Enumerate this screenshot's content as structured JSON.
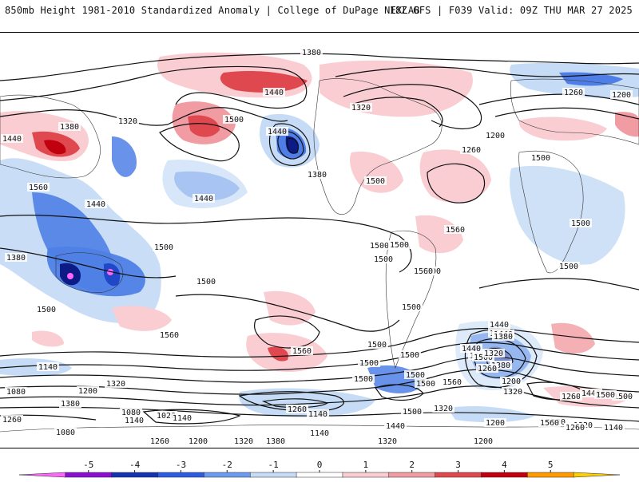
{
  "header": {
    "left_title": "850mb Height 1981-2010 Standardized Anomaly | College of DuPage NEXLAB",
    "right_title": "18Z GFS | F039 Valid: 09Z THU MAR 27 2025"
  },
  "map": {
    "anomaly_color_positive_1": "#f9cdd1",
    "anomaly_color_positive_2": "#f19ca3",
    "anomaly_color_positive_3": "#e0484f",
    "anomaly_color_positive_4": "#c0000f",
    "anomaly_color_negative_1": "#c6dcf6",
    "anomaly_color_negative_2": "#4f7fe6",
    "anomaly_color_negative_3": "#2047c8",
    "anomaly_color_negative_4": "#0d1b87",
    "contour_labels": [
      "1380",
      "1440",
      "1500",
      "1320",
      "1260",
      "1380",
      "1440",
      "1500",
      "1200",
      "1500",
      "1440",
      "1380",
      "1320",
      "1260",
      "1440",
      "1380",
      "1500",
      "1560",
      "1440",
      "1500",
      "1560",
      "1500",
      "1500",
      "1560",
      "1500",
      "1500",
      "1500",
      "1500",
      "1560",
      "1500",
      "1500",
      "1500",
      "1500",
      "1500",
      "1560",
      "1500",
      "1500",
      "1440",
      "1380",
      "1320",
      "1200",
      "1320",
      "1260",
      "1140",
      "1200",
      "1260",
      "1320",
      "1140",
      "1200",
      "1260",
      "1140",
      "1080",
      "1380",
      "1320",
      "1200",
      "1080",
      "1080",
      "1140",
      "1020",
      "1140",
      "1200",
      "1260",
      "1320",
      "1380",
      "1140",
      "1320",
      "1200",
      "1500",
      "1440",
      "1560",
      "1500",
      "1440",
      "1440",
      "1500",
      "1500",
      "1500",
      "1560",
      "1380",
      "1320",
      "1260",
      "1500",
      "1500",
      "1440",
      "1320",
      "1260"
    ]
  },
  "colorbar": {
    "ticks": [
      "-5",
      "-4",
      "-3",
      "-2",
      "-1",
      "0",
      "1",
      "2",
      "3",
      "4",
      "5"
    ],
    "colors": [
      "#ff66ff",
      "#8a0fd0",
      "#1532b0",
      "#2c5de0",
      "#6b9af0",
      "#c6dcf6",
      "#ffffff",
      "#f9cdd1",
      "#f19ca3",
      "#e0484f",
      "#c0000f",
      "#ff9a00",
      "#ffd000"
    ]
  }
}
